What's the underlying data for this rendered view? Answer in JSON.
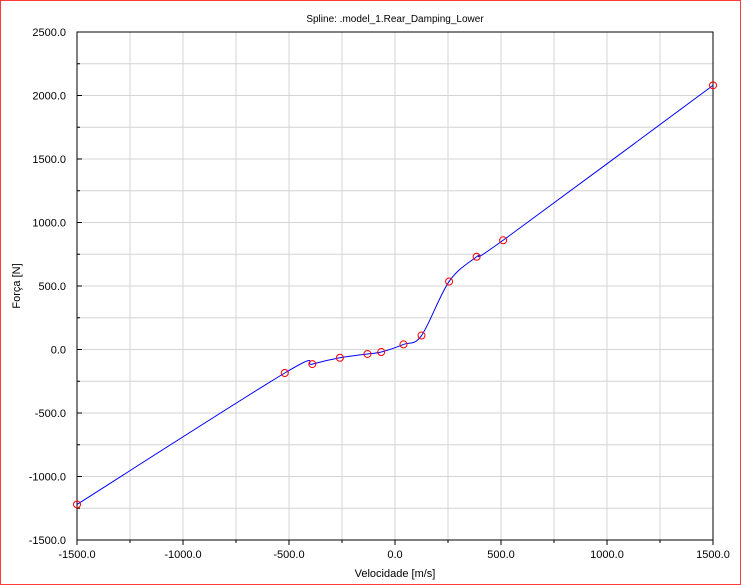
{
  "chart_data": {
    "type": "line",
    "title": "Spline: .model_1.Rear_Damping_Lower",
    "xlabel": "Velocidade [m/s]",
    "ylabel": "Força [N]",
    "xlim": [
      -1500,
      1500
    ],
    "ylim": [
      -1500,
      2500
    ],
    "x_ticks": [
      "-1500.0",
      "-1000.0",
      "-500.0",
      "0.0",
      "500.0",
      "1000.0",
      "1500.0"
    ],
    "y_ticks": [
      "2500.0",
      "2000.0",
      "1500.0",
      "1000.0",
      "500.0",
      "0.0",
      "-500.0",
      "-1000.0",
      "-1500.0"
    ],
    "grid": true,
    "series": [
      {
        "color": "#0000ff",
        "marker_color": "#ff0000",
        "x": [
          -1500,
          -520,
          -390,
          -260,
          -130,
          -65,
          40,
          125,
          255,
          385,
          510,
          1500
        ],
        "y": [
          -1220,
          -185,
          -115,
          -65,
          -35,
          -20,
          40,
          110,
          535,
          730,
          860,
          2080
        ]
      }
    ]
  },
  "colors": {
    "border": "#ff3b3b",
    "grid": "#d4d4d4",
    "axis": "#000000"
  }
}
